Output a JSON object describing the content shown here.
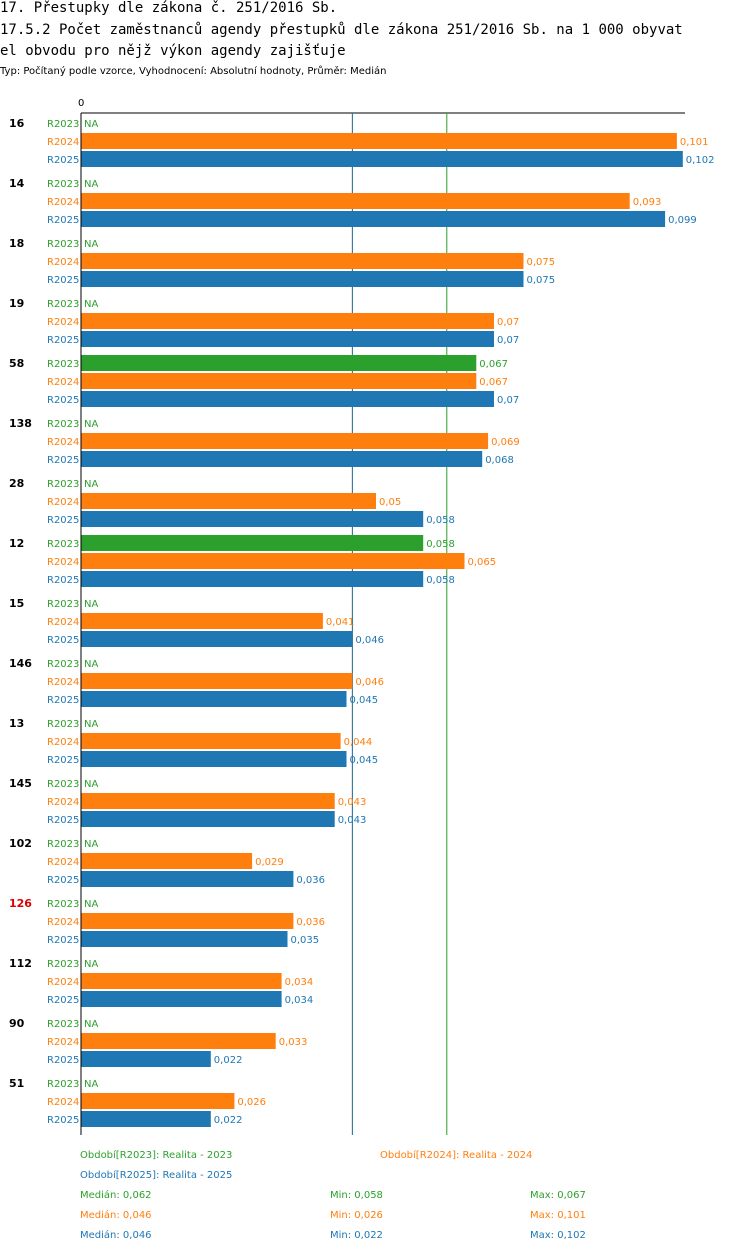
{
  "heading": {
    "line1": "17. Přestupky dle zákona č. 251/2016 Sb.",
    "line2": "17.5.2 Počet zaměstnanců agendy přestupků dle zákona 251/2016 Sb. na 1 000 obyvat",
    "line3": "el obvodu pro nějž výkon agendy zajišťuje",
    "subtitle": "Typ: Počítaný podle vzorce, Vyhodnocení: Absolutní hodnoty, Průměr: Medián"
  },
  "colors": {
    "R2023": "#2ca02c",
    "R2024": "#ff7f0e",
    "R2025": "#1f77b4",
    "highlight": "#dd0000",
    "text": "#000000"
  },
  "chart_data": {
    "type": "bar",
    "orientation": "horizontal",
    "xlim": [
      0,
      0.105
    ],
    "axis_tick_label": "0",
    "highlight_category": "126",
    "categories": [
      "16",
      "14",
      "18",
      "19",
      "58",
      "138",
      "28",
      "12",
      "15",
      "146",
      "13",
      "145",
      "102",
      "126",
      "112",
      "90",
      "51"
    ],
    "series": [
      {
        "name": "R2023",
        "color": "#2ca02c",
        "values": [
          null,
          null,
          null,
          null,
          0.067,
          null,
          null,
          0.058,
          null,
          null,
          null,
          null,
          null,
          null,
          null,
          null,
          null
        ]
      },
      {
        "name": "R2024",
        "color": "#ff7f0e",
        "values": [
          0.101,
          0.093,
          0.075,
          0.07,
          0.067,
          0.069,
          0.05,
          0.065,
          0.041,
          0.046,
          0.044,
          0.043,
          0.029,
          0.036,
          0.034,
          0.033,
          0.026
        ]
      },
      {
        "name": "R2025",
        "color": "#1f77b4",
        "values": [
          0.102,
          0.099,
          0.075,
          0.07,
          0.07,
          0.068,
          0.058,
          0.058,
          0.046,
          0.045,
          0.045,
          0.043,
          0.036,
          0.035,
          0.034,
          0.022,
          0.022
        ]
      }
    ],
    "labels": {
      "R2023": [
        "NA",
        "NA",
        "NA",
        "NA",
        "0,067",
        "NA",
        "NA",
        "0,058",
        "NA",
        "NA",
        "NA",
        "NA",
        "NA",
        "NA",
        "NA",
        "NA",
        "NA"
      ],
      "R2024": [
        "0,101",
        "0,093",
        "0,075",
        "0,07",
        "0,067",
        "0,069",
        "0,05",
        "0,065",
        "0,041",
        "0,046",
        "0,044",
        "0,043",
        "0,029",
        "0,036",
        "0,034",
        "0,033",
        "0,026"
      ],
      "R2025": [
        "0,102",
        "0,099",
        "0,075",
        "0,07",
        "0,07",
        "0,068",
        "0,058",
        "0,058",
        "0,046",
        "0,045",
        "0,045",
        "0,043",
        "0,036",
        "0,035",
        "0,034",
        "0,022",
        "0,022"
      ]
    },
    "median_lines": [
      {
        "series": "R2023",
        "value": 0.062
      },
      {
        "series": "R2024",
        "value": 0.046
      },
      {
        "series": "R2025",
        "value": 0.046
      }
    ]
  },
  "legend": {
    "period_r2023": "Období[R2023]: Realita - 2023",
    "period_r2024": "Období[R2024]: Realita - 2024",
    "period_r2025": "Období[R2025]: Realita - 2025",
    "stats": {
      "r2023": {
        "median": "Medián: 0,062",
        "min": "Min: 0,058",
        "max": "Max: 0,067"
      },
      "r2024": {
        "median": "Medián: 0,046",
        "min": "Min: 0,026",
        "max": "Max: 0,101"
      },
      "r2025": {
        "median": "Medián: 0,046",
        "min": "Min: 0,022",
        "max": "Max: 0,102"
      }
    }
  }
}
